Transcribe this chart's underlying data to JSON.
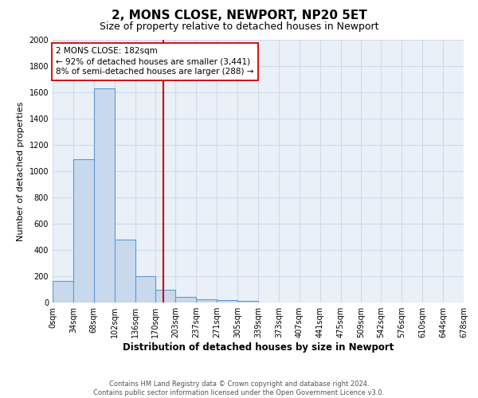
{
  "title1": "2, MONS CLOSE, NEWPORT, NP20 5ET",
  "title2": "Size of property relative to detached houses in Newport",
  "xlabel": "Distribution of detached houses by size in Newport",
  "ylabel": "Number of detached properties",
  "bins": [
    0,
    34,
    68,
    102,
    136,
    170,
    203,
    237,
    271,
    305,
    339,
    373,
    407,
    441,
    475,
    509,
    542,
    576,
    610,
    644,
    678
  ],
  "bar_heights": [
    165,
    1090,
    1630,
    480,
    200,
    100,
    40,
    25,
    20,
    15,
    0,
    0,
    0,
    0,
    0,
    0,
    0,
    0,
    0,
    0
  ],
  "bar_color": "#c9d9ed",
  "bar_edge_color": "#5b9bd5",
  "property_size": 182,
  "vline_color": "#cc0000",
  "annotation_text": "2 MONS CLOSE: 182sqm\n← 92% of detached houses are smaller (3,441)\n8% of semi-detached houses are larger (288) →",
  "annotation_box_color": "#ffffff",
  "annotation_box_edge": "#cc0000",
  "ylim": [
    0,
    2000
  ],
  "yticks": [
    0,
    200,
    400,
    600,
    800,
    1000,
    1200,
    1400,
    1600,
    1800,
    2000
  ],
  "footnote": "Contains HM Land Registry data © Crown copyright and database right 2024.\nContains public sector information licensed under the Open Government Licence v3.0.",
  "fig_bg_color": "#ffffff",
  "plot_bg_color": "#eaf0f8",
  "grid_color": "#d0dae8",
  "title1_fontsize": 11,
  "title2_fontsize": 9,
  "tick_labelsize": 7,
  "ylabel_fontsize": 8,
  "xlabel_fontsize": 8.5,
  "footnote_fontsize": 6
}
